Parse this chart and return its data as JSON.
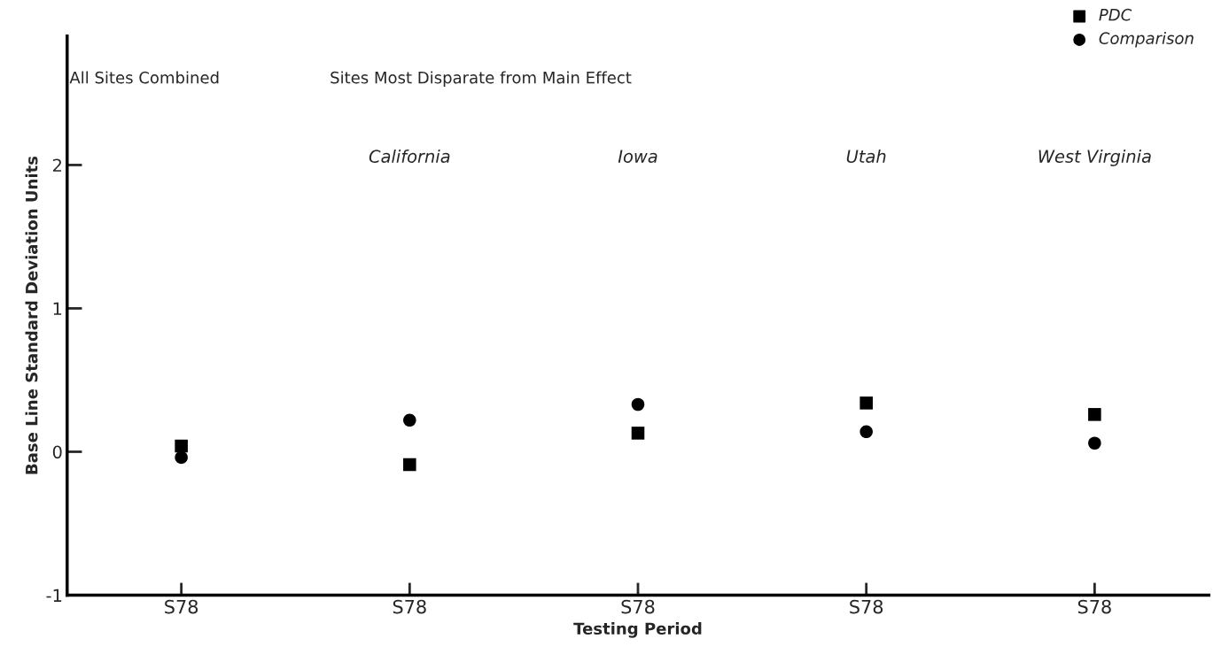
{
  "chart_data": {
    "type": "scatter",
    "categories": [
      "S78",
      "S78",
      "S78",
      "S78",
      "S78"
    ],
    "xlabel": "Testing Period",
    "ylabel": "Base Line Standard Deviation Units",
    "ylim": [
      -1,
      2.9
    ],
    "yticks": [
      -1,
      0,
      1,
      2
    ],
    "series": [
      {
        "name": "PDC",
        "color": "#000000",
        "marker": "square",
        "values": [
          0.04,
          -0.09,
          0.13,
          0.34,
          0.26
        ]
      },
      {
        "name": "Comparison",
        "color": "#000000",
        "marker": "circle",
        "values": [
          -0.04,
          0.22,
          0.33,
          0.14,
          0.06
        ]
      }
    ],
    "annotations": [
      "All Sites Combined",
      "Sites Most Disparate from Main Effect",
      "California",
      "Iowa",
      "Utah",
      "West Virginia"
    ],
    "legend": "top right",
    "grid": false
  }
}
